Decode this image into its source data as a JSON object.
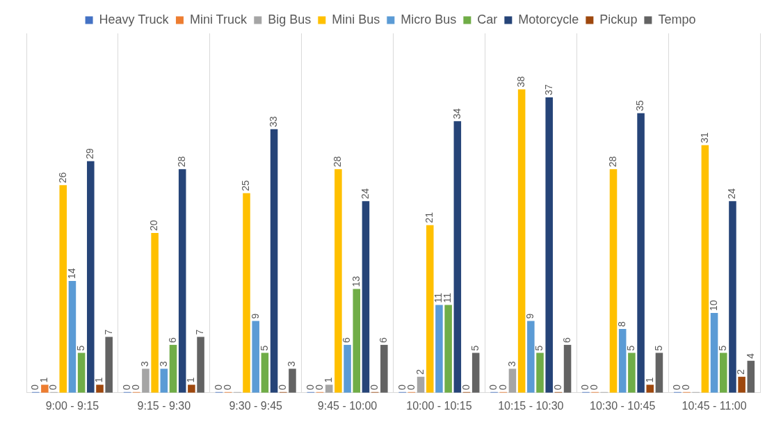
{
  "chart_data": {
    "type": "bar",
    "categories": [
      "9:00 - 9:15",
      "9:15 - 9:30",
      "9:30 - 9:45",
      "9:45 - 10:00",
      "10:00 - 10:15",
      "10:15 - 10:30",
      "10:30 - 10:45",
      "10:45 - 11:00"
    ],
    "series": [
      {
        "name": "Heavy Truck",
        "color": "#4472c4",
        "values": [
          0,
          0,
          0,
          0,
          0,
          0,
          0,
          0
        ]
      },
      {
        "name": "Mini Truck",
        "color": "#ed7d31",
        "values": [
          1,
          0,
          0,
          0,
          0,
          0,
          0,
          0
        ]
      },
      {
        "name": "Big Bus",
        "color": "#a5a5a5",
        "values": [
          0,
          3,
          0,
          1,
          2,
          3,
          0,
          0
        ],
        "value_labels": [
          "0",
          "3",
          null,
          "1",
          "2",
          "3",
          null,
          null
        ]
      },
      {
        "name": "Mini Bus",
        "color": "#ffc000",
        "values": [
          26,
          20,
          25,
          28,
          21,
          38,
          28,
          31
        ]
      },
      {
        "name": "Micro Bus",
        "color": "#5b9bd5",
        "values": [
          14,
          3,
          9,
          6,
          11,
          9,
          8,
          10
        ]
      },
      {
        "name": "Car",
        "color": "#70ad47",
        "values": [
          5,
          6,
          5,
          13,
          11,
          5,
          5,
          5
        ]
      },
      {
        "name": "Motorcycle",
        "color": "#264478",
        "values": [
          29,
          28,
          33,
          24,
          34,
          37,
          35,
          24
        ]
      },
      {
        "name": "Pickup",
        "color": "#9e480e",
        "values": [
          1,
          1,
          0,
          0,
          0,
          0,
          1,
          2
        ]
      },
      {
        "name": "Tempo",
        "color": "#636363",
        "values": [
          7,
          7,
          3,
          6,
          5,
          6,
          5,
          4
        ]
      }
    ],
    "relative": false,
    "data_labels": true,
    "grid": "x",
    "legend": "top"
  }
}
